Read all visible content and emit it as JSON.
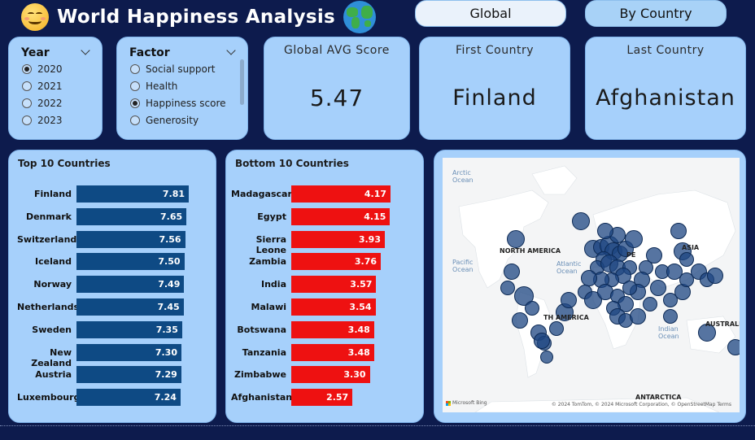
{
  "header": {
    "title": "World Happiness Analysis",
    "smiley_icon": "smiley-icon",
    "globe_icon": "globe-icon"
  },
  "nav": {
    "global_label": "Global",
    "by_country_label": "By Country",
    "active": "global"
  },
  "year_slicer": {
    "title": "Year",
    "options": [
      "2020",
      "2021",
      "2022",
      "2023"
    ],
    "selected": "2020"
  },
  "factor_slicer": {
    "title": "Factor",
    "options": [
      "Social support",
      "Health",
      "Happiness score",
      "Generosity"
    ],
    "selected": "Happiness score"
  },
  "kpis": {
    "global_avg_label": "Global AVG Score",
    "global_avg_value": "5.47",
    "first_country_label": "First Country",
    "first_country_value": "Finland",
    "last_country_label": "Last Country",
    "last_country_value": "Afghanistan"
  },
  "chart_data": [
    {
      "type": "bar",
      "orientation": "horizontal",
      "title": "Top 10 Countries",
      "categories": [
        "Finland",
        "Denmark",
        "Switzerland",
        "Iceland",
        "Norway",
        "Netherlands",
        "Sweden",
        "New Zealand",
        "Austria",
        "Luxembourg"
      ],
      "values": [
        7.81,
        7.65,
        7.56,
        7.5,
        7.49,
        7.45,
        7.35,
        7.3,
        7.29,
        7.24
      ],
      "labels": [
        "7.81",
        "7.65",
        "7.56",
        "7.50",
        "7.49",
        "7.45",
        "7.35",
        "7.30",
        "7.29",
        "7.24"
      ],
      "color": "#0e4a84",
      "xlim": [
        0,
        7.81
      ]
    },
    {
      "type": "bar",
      "orientation": "horizontal",
      "title": "Bottom 10 Countries",
      "categories": [
        "Madagascar",
        "Egypt",
        "Sierra Leone",
        "Zambia",
        "India",
        "Malawi",
        "Botswana",
        "Tanzania",
        "Zimbabwe",
        "Afghanistan"
      ],
      "values": [
        4.17,
        4.15,
        3.93,
        3.76,
        3.57,
        3.54,
        3.48,
        3.48,
        3.3,
        2.57
      ],
      "labels": [
        "4.17",
        "4.15",
        "3.93",
        "3.76",
        "3.57",
        "3.54",
        "3.48",
        "3.48",
        "3.30",
        "2.57"
      ],
      "color": "#ee1111",
      "xlim": [
        0,
        4.17
      ]
    }
  ],
  "map": {
    "ocean_labels": {
      "arctic_1": "Arctic",
      "arctic_2": "Ocean",
      "pacific_1": "Pacific",
      "pacific_2": "Ocean",
      "atlantic_1": "Atlantic",
      "atlantic_2": "Ocean",
      "indian_1": "Indian",
      "indian_2": "Ocean"
    },
    "continent_labels": {
      "north_america": "NORTH AMERICA",
      "south_america": "TH AMERICA",
      "europe": "PE",
      "asia": "ASIA",
      "australia": "AUSTRALIA",
      "antarctica": "ANTARCTICA"
    },
    "attribution": "© 2024 TomTom, © 2024 Microsoft Corporation, © OpenStreetMap  Terms",
    "provider": "Microsoft Bing",
    "bubble_color": "#1e4682"
  }
}
